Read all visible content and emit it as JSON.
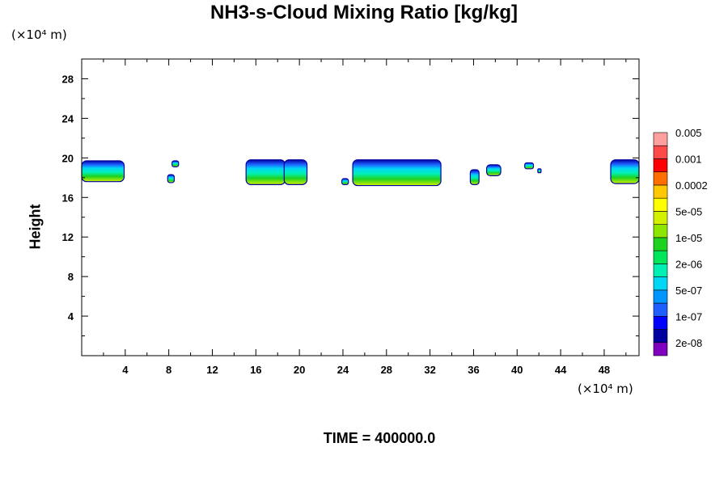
{
  "chart_data": {
    "type": "heatmap",
    "title": "NH3-s-Cloud Mixing Ratio [kg/kg]",
    "xlabel": "",
    "ylabel": "Height",
    "x_unit": "(×10⁴ m)",
    "y_unit": "(×10⁴ m)",
    "xlim": [
      0,
      51.2
    ],
    "ylim": [
      0,
      30
    ],
    "x_ticks": [
      4,
      8,
      12,
      16,
      20,
      24,
      28,
      32,
      36,
      40,
      44,
      48
    ],
    "y_ticks": [
      4,
      8,
      12,
      16,
      20,
      24,
      28
    ],
    "grid": false,
    "colorbar": {
      "labels": [
        "2e-08",
        "1e-07",
        "5e-07",
        "2e-06",
        "1e-05",
        "5e-05",
        "0.0002",
        "0.001",
        "0.005"
      ],
      "colors": [
        "#7f00bf",
        "#0000a0",
        "#0000ff",
        "#1f5fff",
        "#0096ff",
        "#00d7f5",
        "#00f0b4",
        "#00e65a",
        "#1fd21f",
        "#8ce600",
        "#d2f000",
        "#ffff00",
        "#ffc800",
        "#ff6e00",
        "#ff0000",
        "#ff4a4a",
        "#ffa0a0"
      ],
      "placement": "right"
    },
    "cloud_patches": [
      {
        "x": [
          0.0,
          3.9
        ],
        "y": [
          17.6,
          19.7
        ]
      },
      {
        "x": [
          7.9,
          8.5
        ],
        "y": [
          17.5,
          18.3
        ]
      },
      {
        "x": [
          8.3,
          8.9
        ],
        "y": [
          19.1,
          19.7
        ]
      },
      {
        "x": [
          15.1,
          18.7
        ],
        "y": [
          17.3,
          19.8
        ]
      },
      {
        "x": [
          18.6,
          20.7
        ],
        "y": [
          17.3,
          19.8
        ]
      },
      {
        "x": [
          23.9,
          24.5
        ],
        "y": [
          17.3,
          17.9
        ]
      },
      {
        "x": [
          24.9,
          33.0
        ],
        "y": [
          17.2,
          19.8
        ]
      },
      {
        "x": [
          35.7,
          36.5
        ],
        "y": [
          17.3,
          18.8
        ]
      },
      {
        "x": [
          37.2,
          38.5
        ],
        "y": [
          18.2,
          19.3
        ]
      },
      {
        "x": [
          40.7,
          41.5
        ],
        "y": [
          18.9,
          19.5
        ]
      },
      {
        "x": [
          41.9,
          42.2
        ],
        "y": [
          18.5,
          18.9
        ]
      },
      {
        "x": [
          48.6,
          51.2
        ],
        "y": [
          17.4,
          19.8
        ]
      }
    ],
    "annotation": "TIME = 400000.0"
  }
}
